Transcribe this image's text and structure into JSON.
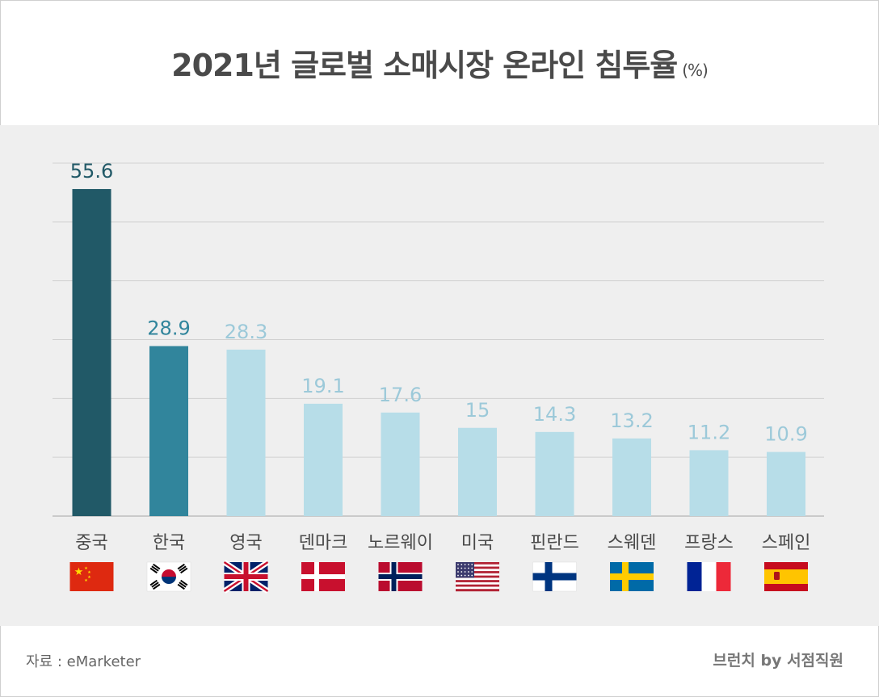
{
  "title": "2021년 글로벌 소매시장 온라인 침투율",
  "title_unit": "(%)",
  "source": "자료 : eMarketer",
  "brand": "브런치 by 서점직원",
  "colors": {
    "panel_bg": "#efefef",
    "grid": "#d0d0d0",
    "highlight_dark": "#215967",
    "highlight_mid": "#31859c",
    "default_bar": "#b7dde8",
    "label_default": "#9cc9d9"
  },
  "chart_data": {
    "type": "bar",
    "title": "2021년 글로벌 소매시장 온라인 침투율",
    "xlabel": "",
    "ylabel": "(%)",
    "ylim": [
      0,
      60
    ],
    "grid": true,
    "categories": [
      "중국",
      "한국",
      "영국",
      "덴마크",
      "노르웨이",
      "미국",
      "핀란드",
      "스웨덴",
      "프랑스",
      "스페인"
    ],
    "values": [
      55.6,
      28.9,
      28.3,
      19.1,
      17.6,
      15,
      14.3,
      13.2,
      11.2,
      10.9
    ],
    "value_labels": [
      "55.6",
      "28.9",
      "28.3",
      "19.1",
      "17.6",
      "15",
      "14.3",
      "13.2",
      "11.2",
      "10.9"
    ],
    "flag_icons": [
      "china-flag-icon",
      "korea-flag-icon",
      "uk-flag-icon",
      "denmark-flag-icon",
      "norway-flag-icon",
      "usa-flag-icon",
      "finland-flag-icon",
      "sweden-flag-icon",
      "france-flag-icon",
      "spain-flag-icon"
    ]
  }
}
